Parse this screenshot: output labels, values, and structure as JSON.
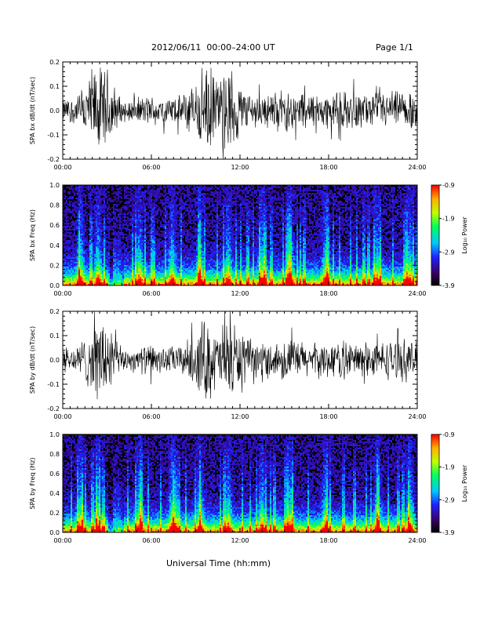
{
  "header": {
    "title": "2012/06/11  00:00–24:00 UT",
    "page": "Page 1/1"
  },
  "x_axis_title": "Universal Time (hh:mm)",
  "colorbar": {
    "label": "Log₁₀ Power",
    "ticks": [
      "-0.9",
      "-1.9",
      "-2.9",
      "-3.9"
    ],
    "range": [
      -3.9,
      -0.9
    ]
  },
  "chart_data": [
    {
      "type": "line",
      "ylabel": "SPA bx dB/dt (nT/sec)",
      "xlim": [
        "00:00",
        "24:00"
      ],
      "ylim": [
        -0.2,
        0.2
      ],
      "x_ticks": [
        "00:00",
        "06:00",
        "12:00",
        "18:00",
        "24:00"
      ],
      "y_ticks": [
        "-0.2",
        "-0.1",
        "0.0",
        "0.1",
        "0.2"
      ],
      "series": [
        {
          "color": "#000000",
          "envelope_hours": [
            0,
            1,
            2,
            2.5,
            3,
            3.5,
            4,
            5,
            6,
            7,
            8,
            9,
            9.5,
            10,
            10.5,
            11,
            11.5,
            12,
            13,
            14,
            15,
            16,
            17,
            18,
            19,
            20,
            21,
            22,
            23,
            24
          ],
          "envelope_amplitude": [
            0.05,
            0.07,
            0.2,
            0.2,
            0.2,
            0.12,
            0.05,
            0.06,
            0.07,
            0.06,
            0.07,
            0.15,
            0.2,
            0.2,
            0.15,
            0.2,
            0.2,
            0.12,
            0.08,
            0.08,
            0.1,
            0.09,
            0.08,
            0.08,
            0.09,
            0.08,
            0.08,
            0.09,
            0.09,
            0.08
          ]
        }
      ]
    },
    {
      "type": "heatmap",
      "ylabel": "SPA bx Freq (Hz)",
      "xlim": [
        "00:00",
        "24:00"
      ],
      "ylim": [
        0.0,
        1.0
      ],
      "x_ticks": [
        "00:00",
        "06:00",
        "12:00",
        "18:00",
        "24:00"
      ],
      "y_ticks": [
        "0.0",
        "0.2",
        "0.4",
        "0.6",
        "0.8",
        "1.0"
      ],
      "bursts_hours": [
        1.2,
        2.4,
        3.8,
        5.2,
        7.4,
        9.3,
        11.2,
        13.5,
        15.4,
        17.8,
        21.3,
        23.5
      ]
    },
    {
      "type": "line",
      "ylabel": "SPA by dB/dt (nT/sec)",
      "xlim": [
        "00:00",
        "24:00"
      ],
      "ylim": [
        -0.2,
        0.2
      ],
      "x_ticks": [
        "00:00",
        "06:00",
        "12:00",
        "18:00",
        "24:00"
      ],
      "y_ticks": [
        "-0.2",
        "-0.1",
        "0.0",
        "0.1",
        "0.2"
      ],
      "series": [
        {
          "color": "#000000",
          "envelope_hours": [
            0,
            1,
            2,
            2.5,
            3,
            3.5,
            4,
            5,
            6,
            7,
            8,
            9,
            9.5,
            10,
            10.5,
            11,
            11.5,
            12,
            13,
            14,
            15,
            16,
            17,
            18,
            19,
            20,
            21,
            22,
            23,
            24
          ],
          "envelope_amplitude": [
            0.05,
            0.07,
            0.15,
            0.2,
            0.2,
            0.12,
            0.05,
            0.06,
            0.07,
            0.06,
            0.07,
            0.12,
            0.2,
            0.18,
            0.12,
            0.2,
            0.2,
            0.12,
            0.08,
            0.08,
            0.1,
            0.09,
            0.08,
            0.08,
            0.09,
            0.08,
            0.08,
            0.09,
            0.1,
            0.08
          ]
        }
      ]
    },
    {
      "type": "heatmap",
      "ylabel": "SPA by Freq (Hz)",
      "xlim": [
        "00:00",
        "24:00"
      ],
      "ylim": [
        0.0,
        1.0
      ],
      "x_ticks": [
        "00:00",
        "06:00",
        "12:00",
        "18:00",
        "24:00"
      ],
      "y_ticks": [
        "0.0",
        "0.2",
        "0.4",
        "0.6",
        "0.8",
        "1.0"
      ],
      "bursts_hours": [
        1.2,
        2.4,
        3.8,
        5.2,
        7.4,
        9.3,
        11.2,
        13.5,
        15.4,
        17.8,
        21.3,
        23.5
      ]
    }
  ]
}
